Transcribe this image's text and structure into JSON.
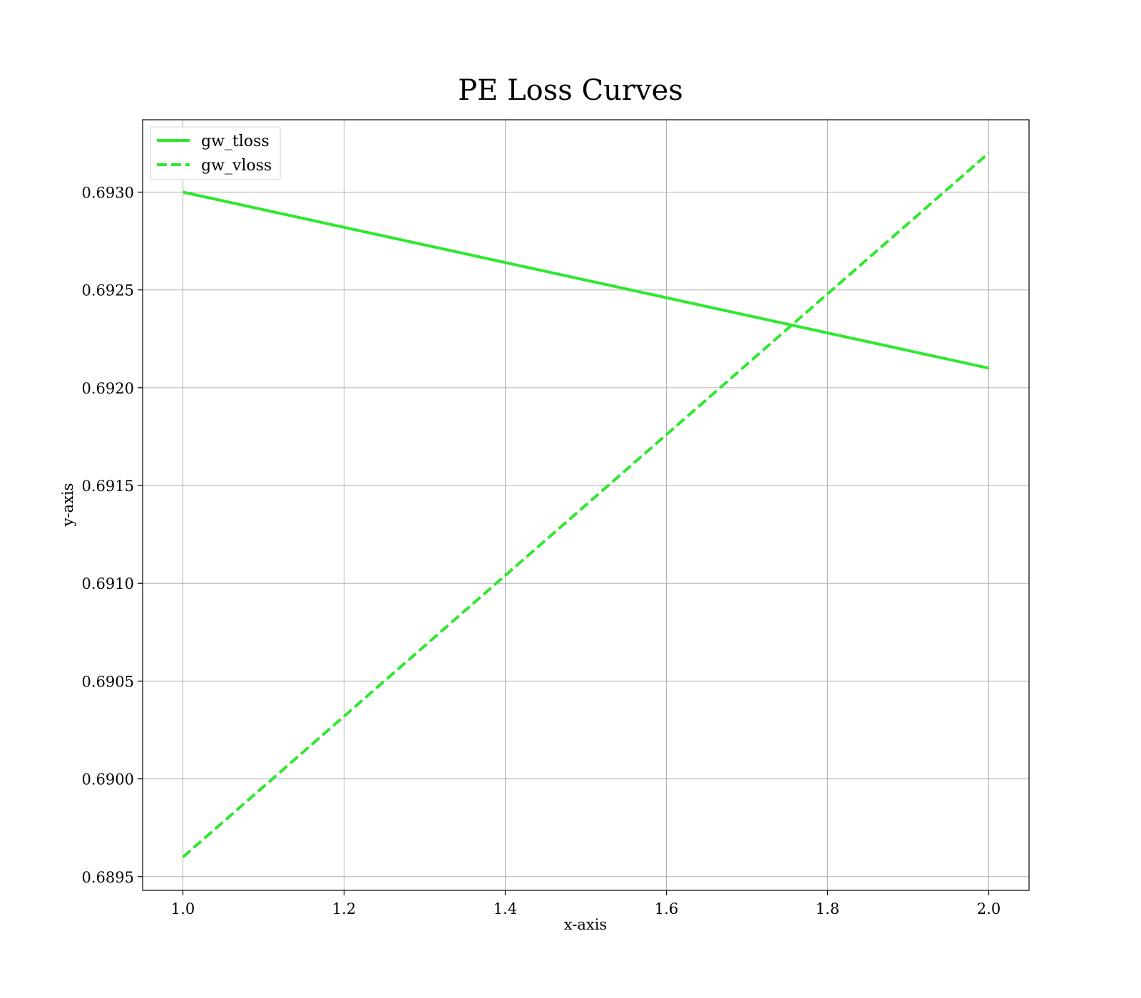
{
  "chart_data": {
    "type": "line",
    "title": "PE Loss Curves",
    "xlabel": "x-axis",
    "ylabel": "y-axis",
    "xlim": [
      0.95,
      2.05
    ],
    "ylim": [
      0.68943,
      0.69337
    ],
    "xticks": [
      1.0,
      1.2,
      1.4,
      1.6,
      1.8,
      2.0
    ],
    "xtick_labels": [
      "1.0",
      "1.2",
      "1.4",
      "1.6",
      "1.8",
      "2.0"
    ],
    "yticks": [
      0.6895,
      0.69,
      0.6905,
      0.691,
      0.6915,
      0.692,
      0.6925,
      0.693
    ],
    "ytick_labels": [
      "0.6895",
      "0.6900",
      "0.6905",
      "0.6910",
      "0.6915",
      "0.6920",
      "0.6925",
      "0.6930"
    ],
    "grid": true,
    "legend_position": "top-left",
    "series": [
      {
        "name": "gw_tloss",
        "x": [
          1.0,
          2.0
        ],
        "y": [
          0.693,
          0.6921
        ],
        "color": "#2ee82e",
        "style": "solid"
      },
      {
        "name": "gw_vloss",
        "x": [
          1.0,
          2.0
        ],
        "y": [
          0.6896,
          0.6932
        ],
        "color": "#2ee82e",
        "style": "dashed"
      }
    ]
  }
}
